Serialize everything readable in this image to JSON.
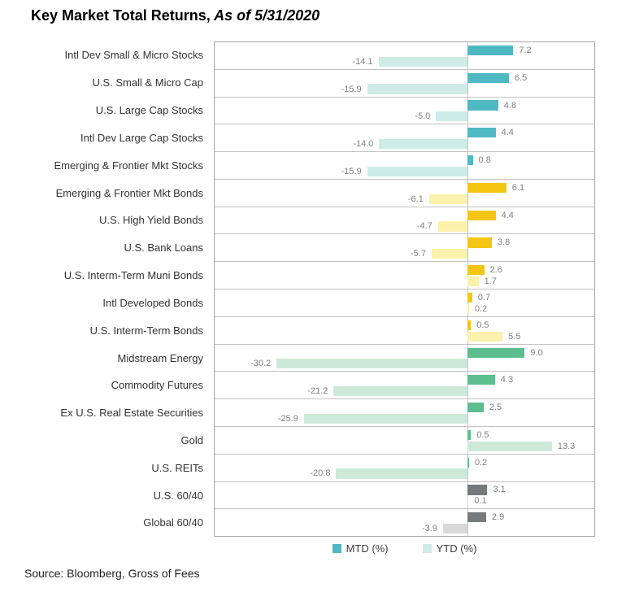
{
  "title": {
    "text": "Key Market Total Returns,",
    "as_of": " As of 5/31/2020"
  },
  "source": "Source: Bloomberg, Gross of Fees",
  "legend": {
    "items": [
      {
        "label": "MTD (%)",
        "swatch": "#4fb9c3"
      },
      {
        "label": "YTD (%)",
        "swatch": "#cdebe7"
      }
    ]
  },
  "palette": {
    "stocks": {
      "mtd": "#4fb9c3",
      "ytd": "#cdebe7"
    },
    "bonds": {
      "mtd": "#f5c513",
      "ytd": "#fcf1ad"
    },
    "alternatives": {
      "mtd": "#5dbd8e",
      "ytd": "#cdead8"
    },
    "balanced": {
      "mtd": "#757b7d",
      "ytd": "#d9d9d9"
    }
  },
  "chart_data": {
    "type": "bar",
    "orientation": "horizontal",
    "title": "Key Market Total Returns, As of 5/31/2020",
    "xlim": [
      -40,
      20
    ],
    "grid": "row-separators",
    "legend_position": "bottom-center",
    "value_label_format": "one-decimal",
    "categories": [
      "Intl Dev Small & Micro Stocks",
      "U.S. Small & Micro Cap",
      "U.S. Large Cap Stocks",
      "Intl Dev Large Cap Stocks",
      "Emerging & Frontier Mkt Stocks",
      "Emerging & Frontier Mkt Bonds",
      "U.S. High Yield Bonds",
      "U.S. Bank Loans",
      "U.S. Interm-Term Muni Bonds",
      "Intl Developed Bonds",
      "U.S. Interm-Term Bonds",
      "Midstream Energy",
      "Commodity Futures",
      "Ex U.S. Real Estate Securities",
      "Gold",
      "U.S. REITs",
      "U.S. 60/40",
      "Global 60/40"
    ],
    "groups": [
      "stocks",
      "stocks",
      "stocks",
      "stocks",
      "stocks",
      "bonds",
      "bonds",
      "bonds",
      "bonds",
      "bonds",
      "bonds",
      "alternatives",
      "alternatives",
      "alternatives",
      "alternatives",
      "alternatives",
      "balanced",
      "balanced"
    ],
    "series": [
      {
        "name": "MTD (%)",
        "values": [
          7.2,
          6.5,
          4.8,
          4.4,
          0.8,
          6.1,
          4.4,
          3.8,
          2.6,
          0.7,
          0.5,
          9.0,
          4.3,
          2.5,
          0.5,
          0.2,
          3.1,
          2.9
        ]
      },
      {
        "name": "YTD (%)",
        "values": [
          -14.1,
          -15.9,
          -5.0,
          -14.0,
          -15.9,
          -6.1,
          -4.7,
          -5.7,
          1.7,
          0.2,
          5.5,
          -30.2,
          -21.2,
          -25.9,
          13.3,
          -20.8,
          0.1,
          -3.9
        ]
      }
    ]
  }
}
